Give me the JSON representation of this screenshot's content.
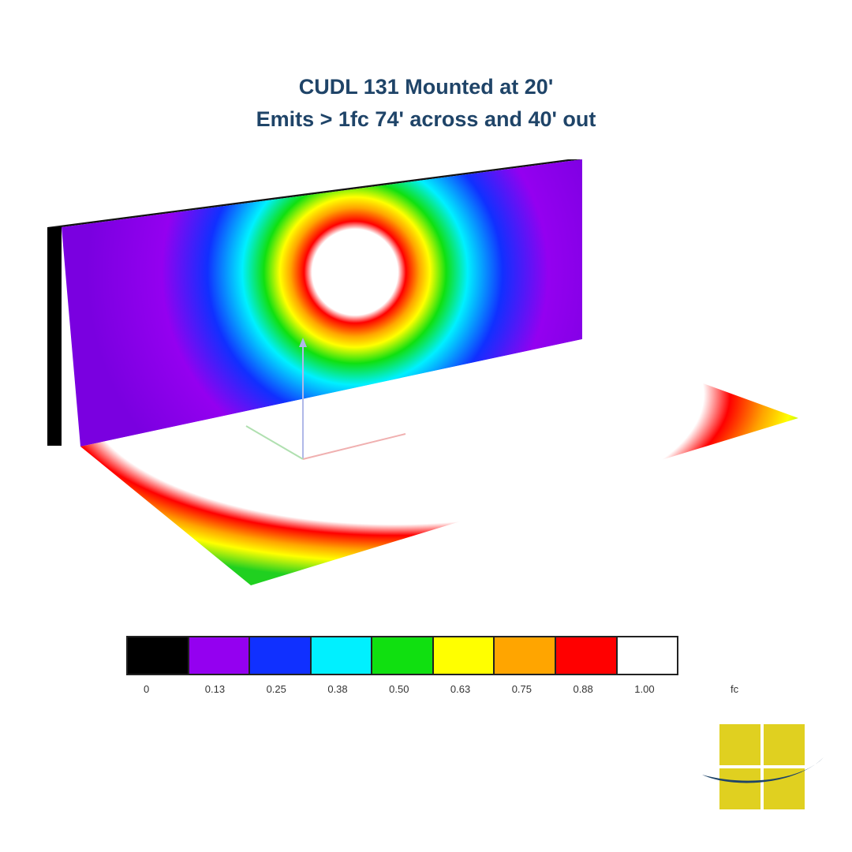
{
  "title": {
    "line1": "CUDL 131 Mounted at 20'",
    "line2": "Emits > 1fc 74' across and 40' out"
  },
  "legend": {
    "unit": "fc",
    "stops": [
      {
        "label": "0",
        "color": "#000000"
      },
      {
        "label": "0.13",
        "color": "#9400f0"
      },
      {
        "label": "0.25",
        "color": "#1030ff"
      },
      {
        "label": "0.38",
        "color": "#00f0ff"
      },
      {
        "label": "0.50",
        "color": "#10e010"
      },
      {
        "label": "0.63",
        "color": "#ffff00"
      },
      {
        "label": "0.75",
        "color": "#ffa500"
      },
      {
        "label": "0.88",
        "color": "#ff0000"
      },
      {
        "label": "1.00",
        "color": "#ffffff"
      }
    ]
  },
  "logo": {
    "square_color": "#e0d020",
    "swoosh_color": "#1f4468"
  }
}
